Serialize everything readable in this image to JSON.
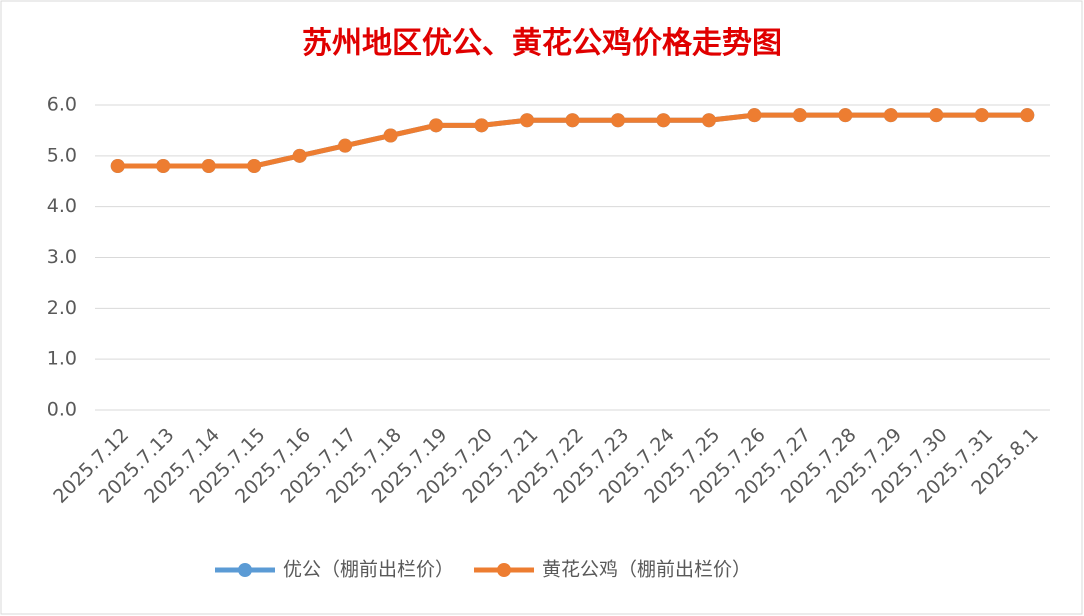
{
  "chart_data": {
    "type": "line",
    "title": "苏州地区优公、黄花公鸡价格走势图",
    "categories": [
      "2025.7.12",
      "2025.7.13",
      "2025.7.14",
      "2025.7.15",
      "2025.7.16",
      "2025.7.17",
      "2025.7.18",
      "2025.7.19",
      "2025.7.20",
      "2025.7.21",
      "2025.7.22",
      "2025.7.23",
      "2025.7.24",
      "2025.7.25",
      "2025.7.26",
      "2025.7.27",
      "2025.7.28",
      "2025.7.29",
      "2025.7.30",
      "2025.7.31",
      "2025.8.1"
    ],
    "series": [
      {
        "name": "优公（棚前出栏价）",
        "color": "#5b9bd5",
        "values": [
          4.8,
          4.8,
          4.8,
          4.8,
          5.0,
          5.2,
          5.4,
          5.6,
          5.6,
          5.7,
          5.7,
          5.7,
          5.7,
          5.7,
          5.8,
          5.8,
          5.8,
          5.8,
          5.8,
          5.8,
          5.8
        ]
      },
      {
        "name": "黄花公鸡（棚前出栏价）",
        "color": "#ed7d31",
        "values": [
          4.8,
          4.8,
          4.8,
          4.8,
          5.0,
          5.2,
          5.4,
          5.6,
          5.6,
          5.7,
          5.7,
          5.7,
          5.7,
          5.7,
          5.8,
          5.8,
          5.8,
          5.8,
          5.8,
          5.8,
          5.8
        ]
      }
    ],
    "ylim": [
      0,
      6
    ],
    "yticks": [
      {
        "value": 0,
        "label": "0.0"
      },
      {
        "value": 1,
        "label": "1.0"
      },
      {
        "value": 2,
        "label": "2.0"
      },
      {
        "value": 3,
        "label": "3.0"
      },
      {
        "value": 4,
        "label": "4.0"
      },
      {
        "value": 5,
        "label": "5.0"
      },
      {
        "value": 6,
        "label": "6.0"
      }
    ],
    "grid": true,
    "legend": "bottom"
  }
}
